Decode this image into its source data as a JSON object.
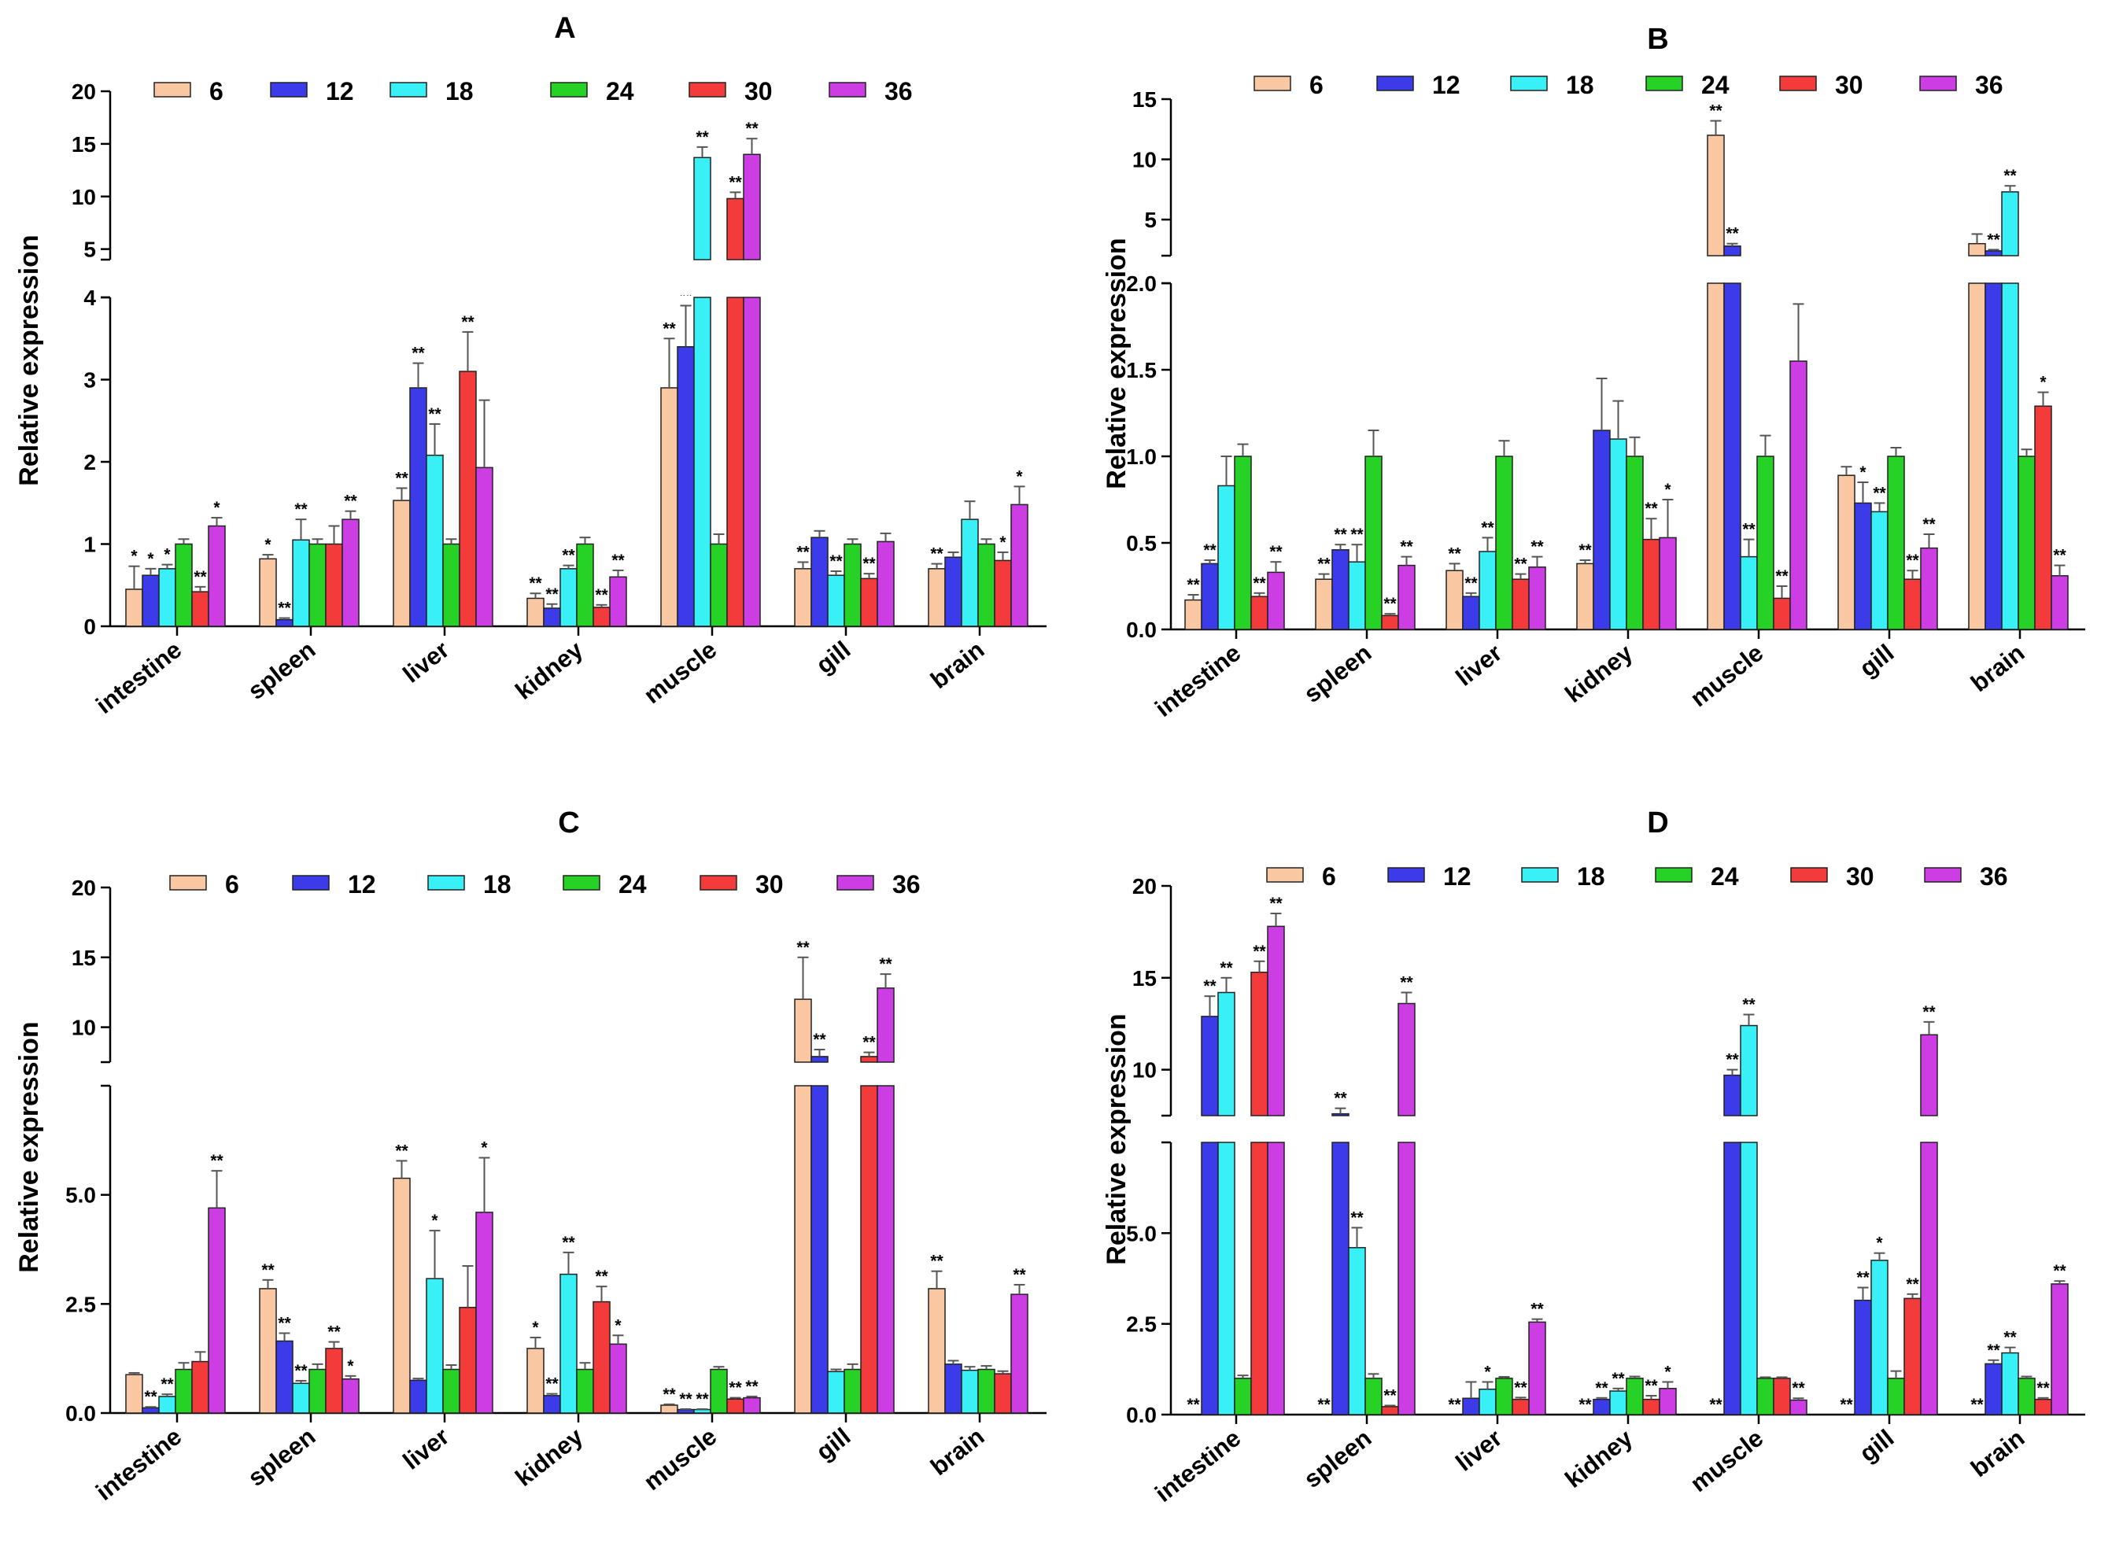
{
  "figure": {
    "legend_labels": [
      "6",
      "12",
      "18",
      "24",
      "30",
      "36"
    ],
    "colors": [
      "#f9c7a1",
      "#3b3bea",
      "#38f0f5",
      "#26d226",
      "#f43b3b",
      "#cc3ee4"
    ]
  },
  "chart_data": [
    {
      "panel": "A",
      "type": "bar",
      "title": "A",
      "ylabel": "Relative expression",
      "xlabel": "",
      "categories": [
        "intestine",
        "spleen",
        "liver",
        "kidney",
        "muscle",
        "gill",
        "brain"
      ],
      "lower_ticks": [
        "0",
        "1",
        "2",
        "3",
        "4"
      ],
      "upper_ticks": [
        "5",
        "10",
        "15",
        "20"
      ],
      "lower_range": [
        0,
        4
      ],
      "upper_range": [
        4,
        20
      ],
      "series": [
        {
          "name": "6",
          "values": [
            0.45,
            0.82,
            1.53,
            0.34,
            2.9,
            0.7,
            0.7
          ],
          "errors": [
            0.28,
            0.05,
            0.15,
            0.06,
            0.6,
            0.08,
            0.06
          ],
          "stars": [
            "*",
            "*",
            "**",
            "**",
            "**",
            "**",
            "**"
          ]
        },
        {
          "name": "12",
          "values": [
            0.62,
            0.08,
            2.9,
            0.22,
            3.4,
            1.08,
            0.84
          ],
          "errors": [
            0.08,
            0.02,
            0.3,
            0.05,
            0.5,
            0.08,
            0.06
          ],
          "stars": [
            "*",
            "**",
            "**",
            "**",
            "**",
            "",
            ""
          ]
        },
        {
          "name": "18",
          "values": [
            0.7,
            1.05,
            2.08,
            0.7,
            13.7,
            0.62,
            1.3
          ],
          "errors": [
            0.05,
            0.25,
            0.38,
            0.04,
            1.0,
            0.05,
            0.22
          ],
          "stars": [
            "*",
            "**",
            "**",
            "**",
            "**",
            "**",
            ""
          ]
        },
        {
          "name": "24",
          "values": [
            1.0,
            1.0,
            1.0,
            1.0,
            1.0,
            1.0,
            1.0
          ],
          "errors": [
            0.06,
            0.06,
            0.06,
            0.08,
            0.12,
            0.06,
            0.06
          ],
          "stars": [
            "",
            "",
            "",
            "",
            "",
            "",
            ""
          ]
        },
        {
          "name": "30",
          "values": [
            0.42,
            1.0,
            3.1,
            0.23,
            9.8,
            0.58,
            0.8
          ],
          "errors": [
            0.06,
            0.22,
            0.48,
            0.03,
            0.6,
            0.06,
            0.1
          ],
          "stars": [
            "**",
            "",
            "**",
            "**",
            "**",
            "**",
            "*"
          ]
        },
        {
          "name": "36",
          "values": [
            1.22,
            1.3,
            1.93,
            0.6,
            14.0,
            1.03,
            1.48
          ],
          "errors": [
            0.1,
            0.1,
            0.82,
            0.08,
            1.5,
            0.1,
            0.22
          ],
          "stars": [
            "*",
            "**",
            "",
            "**",
            "**",
            "",
            "*"
          ]
        }
      ]
    },
    {
      "panel": "B",
      "type": "bar",
      "title": "B",
      "ylabel": "Relative expression",
      "xlabel": "",
      "categories": [
        "intestine",
        "spleen",
        "liver",
        "kidney",
        "muscle",
        "gill",
        "brain"
      ],
      "lower_ticks": [
        "0.0",
        "0.5",
        "1.0",
        "1.5",
        "2.0"
      ],
      "upper_ticks": [
        "5",
        "10",
        "15"
      ],
      "lower_range": [
        0,
        2
      ],
      "upper_range": [
        2,
        15
      ],
      "series": [
        {
          "name": "6",
          "values": [
            0.17,
            0.29,
            0.34,
            0.38,
            12.0,
            0.89,
            3.0
          ],
          "errors": [
            0.03,
            0.03,
            0.04,
            0.02,
            1.2,
            0.05,
            0.8
          ],
          "stars": [
            "**",
            "**",
            "**",
            "**",
            "**",
            "",
            ""
          ]
        },
        {
          "name": "12",
          "values": [
            0.38,
            0.46,
            0.19,
            1.15,
            2.8,
            0.73,
            2.4
          ],
          "errors": [
            0.02,
            0.03,
            0.02,
            0.3,
            0.2,
            0.12,
            0.1
          ],
          "stars": [
            "**",
            "**",
            "**",
            "",
            "**",
            "*",
            "**"
          ]
        },
        {
          "name": "18",
          "values": [
            0.83,
            0.39,
            0.45,
            1.1,
            0.42,
            0.68,
            7.3
          ],
          "errors": [
            0.17,
            0.1,
            0.08,
            0.22,
            0.1,
            0.05,
            0.5
          ],
          "stars": [
            "",
            "**",
            "**",
            "",
            "**",
            "**",
            "**"
          ]
        },
        {
          "name": "24",
          "values": [
            1.0,
            1.0,
            1.0,
            1.0,
            1.0,
            1.0,
            1.0
          ],
          "errors": [
            0.07,
            0.15,
            0.09,
            0.11,
            0.12,
            0.05,
            0.04
          ],
          "stars": [
            "",
            "",
            "",
            "",
            "",
            "",
            ""
          ]
        },
        {
          "name": "30",
          "values": [
            0.19,
            0.08,
            0.29,
            0.52,
            0.18,
            0.29,
            1.29
          ],
          "errors": [
            0.02,
            0.01,
            0.03,
            0.12,
            0.07,
            0.05,
            0.08
          ],
          "stars": [
            "**",
            "**",
            "**",
            "**",
            "**",
            "**",
            "*"
          ]
        },
        {
          "name": "36",
          "values": [
            0.33,
            0.37,
            0.36,
            0.53,
            1.55,
            0.47,
            0.31
          ],
          "errors": [
            0.06,
            0.05,
            0.06,
            0.22,
            0.33,
            0.08,
            0.06
          ],
          "stars": [
            "**",
            "**",
            "**",
            "*",
            "",
            "**",
            "**"
          ]
        }
      ]
    },
    {
      "panel": "C",
      "type": "bar",
      "title": "C",
      "ylabel": "Relative expression",
      "xlabel": "",
      "categories": [
        "intestine",
        "spleen",
        "liver",
        "kidney",
        "muscle",
        "gill",
        "brain"
      ],
      "lower_ticks": [
        "0.0",
        "2.5",
        "5.0"
      ],
      "upper_ticks": [
        "10",
        "15",
        "20"
      ],
      "lower_range": [
        0,
        7.5
      ],
      "upper_range": [
        7.5,
        20
      ],
      "series": [
        {
          "name": "6",
          "values": [
            0.88,
            2.85,
            5.38,
            1.48,
            0.18,
            12.0,
            2.85
          ],
          "errors": [
            0.04,
            0.2,
            0.4,
            0.25,
            0.02,
            3.0,
            0.4
          ],
          "stars": [
            "",
            "**",
            "**",
            "*",
            "**",
            "**",
            "**"
          ]
        },
        {
          "name": "12",
          "values": [
            0.12,
            1.65,
            0.75,
            0.4,
            0.08,
            7.9,
            1.12
          ],
          "errors": [
            0.02,
            0.18,
            0.04,
            0.04,
            0.01,
            0.5,
            0.08
          ],
          "stars": [
            "**",
            "**",
            "",
            "**",
            "**",
            "**",
            ""
          ]
        },
        {
          "name": "18",
          "values": [
            0.38,
            0.68,
            3.08,
            3.18,
            0.08,
            0.95,
            0.98
          ],
          "errors": [
            0.05,
            0.06,
            1.1,
            0.5,
            0.01,
            0.05,
            0.08
          ],
          "stars": [
            "**",
            "**",
            "*",
            "**",
            "**",
            "",
            ""
          ]
        },
        {
          "name": "24",
          "values": [
            1.0,
            1.0,
            1.0,
            1.0,
            1.0,
            1.0,
            1.0
          ],
          "errors": [
            0.15,
            0.12,
            0.1,
            0.15,
            0.06,
            0.12,
            0.08
          ],
          "stars": [
            "",
            "",
            "",
            "",
            "",
            "",
            ""
          ]
        },
        {
          "name": "30",
          "values": [
            1.18,
            1.48,
            2.42,
            2.55,
            0.32,
            7.9,
            0.9
          ],
          "errors": [
            0.22,
            0.15,
            0.95,
            0.35,
            0.03,
            0.3,
            0.06
          ],
          "stars": [
            "",
            "**",
            "",
            "**",
            "**",
            "**",
            ""
          ]
        },
        {
          "name": "36",
          "values": [
            4.7,
            0.78,
            4.6,
            1.58,
            0.35,
            12.8,
            2.72
          ],
          "errors": [
            0.85,
            0.07,
            1.25,
            0.2,
            0.03,
            1.0,
            0.22
          ],
          "stars": [
            "**",
            "*",
            "*",
            "*",
            "**",
            "**",
            "**"
          ]
        }
      ]
    },
    {
      "panel": "D",
      "type": "bar",
      "title": "D",
      "ylabel": "Relative expression",
      "xlabel": "",
      "categories": [
        "intestine",
        "spleen",
        "liver",
        "kidney",
        "muscle",
        "gill",
        "brain"
      ],
      "lower_ticks": [
        "0.0",
        "2.5",
        "5.0"
      ],
      "upper_ticks": [
        "10",
        "15",
        "20"
      ],
      "lower_range": [
        0,
        7.5
      ],
      "upper_range": [
        7.5,
        20
      ],
      "series": [
        {
          "name": "6",
          "values": [
            0,
            0,
            0,
            0,
            0,
            0,
            0
          ],
          "errors": [
            0,
            0,
            0,
            0,
            0,
            0,
            0
          ],
          "stars": [
            "**",
            "**",
            "**",
            "**",
            "**",
            "**",
            "**"
          ]
        },
        {
          "name": "12",
          "values": [
            12.9,
            7.6,
            0.45,
            0.42,
            9.7,
            3.15,
            1.4
          ],
          "errors": [
            1.1,
            0.3,
            0.45,
            0.04,
            0.3,
            0.35,
            0.1
          ],
          "stars": [
            "**",
            "**",
            "",
            "**",
            "**",
            "**",
            "**"
          ]
        },
        {
          "name": "18",
          "values": [
            14.2,
            4.6,
            0.7,
            0.65,
            12.4,
            4.25,
            1.7
          ],
          "errors": [
            0.8,
            0.55,
            0.2,
            0.07,
            0.6,
            0.2,
            0.15
          ],
          "stars": [
            "**",
            "**",
            "*",
            "**",
            "**",
            "*",
            "**"
          ]
        },
        {
          "name": "24",
          "values": [
            1.0,
            1.0,
            1.0,
            1.0,
            1.0,
            1.0,
            1.0
          ],
          "errors": [
            0.08,
            0.12,
            0.04,
            0.05,
            0.03,
            0.2,
            0.05
          ],
          "stars": [
            "",
            "",
            "",
            "",
            "",
            "",
            ""
          ]
        },
        {
          "name": "30",
          "values": [
            15.3,
            0.22,
            0.42,
            0.42,
            1.0,
            3.2,
            0.42
          ],
          "errors": [
            0.6,
            0.03,
            0.05,
            0.1,
            0.03,
            0.12,
            0.04
          ],
          "stars": [
            "**",
            "**",
            "**",
            "**",
            "",
            "**",
            "**"
          ]
        },
        {
          "name": "36",
          "values": [
            17.8,
            13.6,
            2.55,
            0.72,
            0.4,
            11.9,
            3.6
          ],
          "errors": [
            0.7,
            0.6,
            0.08,
            0.18,
            0.05,
            0.7,
            0.08
          ],
          "stars": [
            "**",
            "**",
            "**",
            "*",
            "**",
            "**",
            "**"
          ]
        }
      ]
    }
  ]
}
